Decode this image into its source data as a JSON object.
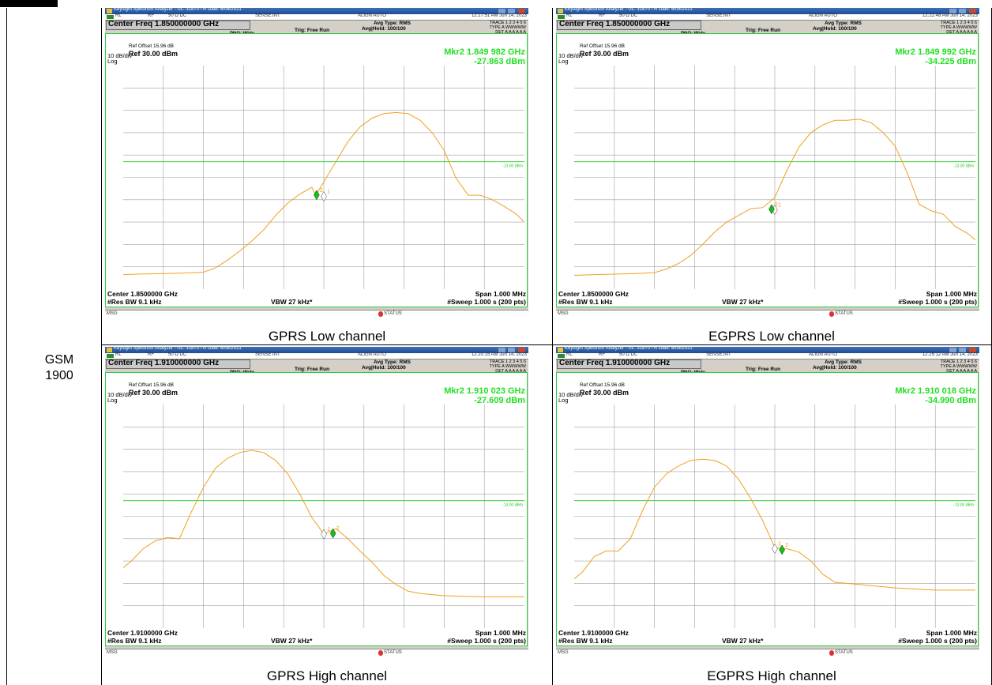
{
  "row_label": {
    "line1": "GSM",
    "line2": "1900"
  },
  "colors": {
    "trace": "#f0a020",
    "grid": "#a0a0a0",
    "display_line": "#22cc22",
    "marker_text": "#22dd22",
    "marker2": "#13c013",
    "marker1": "#ffffff"
  },
  "panels": [
    {
      "caption": "GPRS Low channel",
      "window_title": "Keysight Spectrum Analyzer - UL: 31870 \\ R Date: 6/08/2021",
      "status": {
        "rl": "RL",
        "rf": "RF",
        "ohm": "50 Ω  DC",
        "sense": "SENSE:INT",
        "align": "ALIGN AUTO",
        "time": "12:17:51 AM Jun 14, 2023"
      },
      "center_freq_title": "Center Freq 1.850000000 GHz",
      "pno": "PNO: Wide",
      "ifgain": "IFGain:Low",
      "trig": "Trig: Free Run",
      "atten": "#Atten: 40 dB",
      "avg_type": "Avg Type: RMS",
      "avg_hold": "Avg|Hold: 100/100",
      "trace_line": "TRACE 1 2 3 4 5 6",
      "type_line": "TYPE A WWWWW",
      "det_line": "DET A A A A A A",
      "marker_freq": "Mkr2 1.849 982 GHz",
      "marker_level": "-27.863 dBm",
      "ref_offset": "Ref Offset 15.96 dB",
      "ref_level": "Ref 30.00 dBm",
      "scale": "10 dB/div",
      "log": "Log",
      "center": "Center 1.8500000 GHz",
      "span": "Span 1.000 MHz",
      "res_bw": "#Res BW 9.1 kHz",
      "vbw": "VBW 27 kHz*",
      "sweep": "#Sweep  1.000 s (200 pts)",
      "msg": "MSG",
      "status_label": "STATUS",
      "display_line_label": "-13.00 dBm",
      "chart_data": {
        "type": "line",
        "title": "",
        "xlabel": "",
        "ylabel": "",
        "xlim": [
          1.8495,
          1.8505
        ],
        "ylim": [
          -70,
          30
        ],
        "x_unit": "GHz",
        "y_unit": "dBm",
        "y_ticks": [
          "20.0",
          "10.0",
          "0.00",
          "-10.0",
          "-20.0",
          "-30.0",
          "-40.0",
          "-50.0",
          "-60.0"
        ],
        "display_line": -13.0,
        "series": [
          {
            "x": [
              1.8495,
              1.84955,
              1.8496,
              1.84965,
              1.8497,
              1.84973,
              1.84976,
              1.84979,
              1.84982,
              1.84985,
              1.84988,
              1.84991,
              1.84994,
              1.84997,
              1.84998,
              1.85,
              1.85003,
              1.85006,
              1.85009,
              1.85012,
              1.85015,
              1.85018,
              1.85021,
              1.85024,
              1.85027,
              1.8503,
              1.85033,
              1.85036,
              1.85039,
              1.85042,
              1.85045,
              1.85048,
              1.8505
            ],
            "values": [
              -63.5,
              -63.2,
              -63,
              -62.8,
              -62.4,
              -60.5,
              -57,
              -53,
              -48.5,
              -43.5,
              -37,
              -31.5,
              -27.5,
              -24.5,
              -28,
              -22,
              -13,
              -4,
              2.5,
              6.5,
              8.5,
              9,
              8.5,
              5.5,
              0,
              -8,
              -20.5,
              -28,
              -28,
              -30,
              -33,
              -36.5,
              -40
            ]
          }
        ],
        "markers": [
          {
            "id": "1",
            "x": 1.85,
            "y": -28.5
          },
          {
            "id": "2",
            "x": 1.849982,
            "y": -27.863
          }
        ]
      }
    },
    {
      "caption": "EGPRS Low channel",
      "window_title": "Keysight Spectrum Analyzer - UL: 31870 \\ R Date: 6/08/2021",
      "status": {
        "rl": "RL",
        "rf": "RF",
        "ohm": "50 Ω  DC",
        "sense": "SENSE:INT",
        "align": "ALIGN AUTO",
        "time": "12:22:48 AM Jun 14, 2023"
      },
      "center_freq_title": "Center Freq 1.850000000 GHz",
      "pno": "PNO: Wide",
      "ifgain": "IFGain:Low",
      "trig": "Trig: Free Run",
      "atten": "#Atten: 40 dB",
      "avg_type": "Avg Type: RMS",
      "avg_hold": "Avg|Hold: 100/100",
      "trace_line": "TRACE 1 2 3 4 5 6",
      "type_line": "TYPE A WWWWW",
      "det_line": "DET A A A A A A",
      "marker_freq": "Mkr2 1.849 992 GHz",
      "marker_level": "-34.225 dBm",
      "ref_offset": "Ref Offset 15.96 dB",
      "ref_level": "Ref 30.00 dBm",
      "scale": "10 dB/div",
      "log": "Log",
      "center": "Center 1.8500000 GHz",
      "span": "Span 1.000 MHz",
      "res_bw": "#Res BW 9.1 kHz",
      "vbw": "VBW 27 kHz*",
      "sweep": "#Sweep  1.000 s (200 pts)",
      "msg": "MSG",
      "status_label": "STATUS",
      "display_line_label": "-13.00 dBm",
      "chart_data": {
        "type": "line",
        "title": "",
        "xlabel": "",
        "ylabel": "",
        "xlim": [
          1.8495,
          1.8505
        ],
        "ylim": [
          -70,
          30
        ],
        "x_unit": "GHz",
        "y_unit": "dBm",
        "y_ticks": [
          "20.0",
          "10.0",
          "0.00",
          "-10.0",
          "-20.0",
          "-30.0",
          "-40.0",
          "-50.0",
          "-60.0"
        ],
        "display_line": -13.0,
        "series": [
          {
            "x": [
              1.8495,
              1.84955,
              1.8496,
              1.84965,
              1.8497,
              1.84973,
              1.84976,
              1.84979,
              1.84982,
              1.84985,
              1.84988,
              1.84991,
              1.84994,
              1.84997,
              1.85,
              1.85003,
              1.85006,
              1.85009,
              1.85012,
              1.85015,
              1.85018,
              1.85021,
              1.85024,
              1.85027,
              1.8503,
              1.85033,
              1.85036,
              1.85039,
              1.85042,
              1.85045,
              1.85048,
              1.8505
            ],
            "values": [
              -63.8,
              -63.5,
              -63.3,
              -63,
              -62.6,
              -61,
              -58.5,
              -55,
              -50,
              -44.5,
              -40,
              -37,
              -34,
              -33.5,
              -29,
              -17,
              -6.5,
              0,
              3.5,
              5.5,
              5.5,
              6,
              4.5,
              0,
              -6,
              -18,
              -32,
              -35,
              -36.5,
              -42,
              -45,
              -48
            ]
          }
        ],
        "markers": [
          {
            "id": "1",
            "x": 1.85,
            "y": -34.5
          },
          {
            "id": "2",
            "x": 1.849992,
            "y": -34.225
          }
        ]
      }
    },
    {
      "caption": "GPRS High channel",
      "window_title": "Keysight Spectrum Analyzer - UL: 31870 \\ R Date: 6/08/2021",
      "status": {
        "rl": "RL",
        "rf": "RF",
        "ohm": "50 Ω  DC",
        "sense": "SENSE:INT",
        "align": "ALIGN AUTO",
        "time": "12:20:15 AM Jun 14, 2023"
      },
      "center_freq_title": "Center Freq 1.910000000 GHz",
      "pno": "PNO: Wide",
      "ifgain": "IFGain:Low",
      "trig": "Trig: Free Run",
      "atten": "#Atten: 40 dB",
      "avg_type": "Avg Type: RMS",
      "avg_hold": "Avg|Hold: 100/100",
      "trace_line": "TRACE 1 2 3 4 5 6",
      "type_line": "TYPE A WWWWW",
      "det_line": "DET A A A A A A",
      "marker_freq": "Mkr2 1.910 023 GHz",
      "marker_level": "-27.609 dBm",
      "ref_offset": "Ref Offset 15.96 dB",
      "ref_level": "Ref 30.00 dBm",
      "scale": "10 dB/div",
      "log": "Log",
      "center": "Center 1.9100000 GHz",
      "span": "Span 1.000 MHz",
      "res_bw": "#Res BW 9.1 kHz",
      "vbw": "VBW 27 kHz*",
      "sweep": "#Sweep  1.000 s (200 pts)",
      "msg": "MSG",
      "status_label": "STATUS",
      "display_line_label": "-13.00 dBm",
      "chart_data": {
        "type": "line",
        "title": "",
        "xlabel": "",
        "ylabel": "",
        "xlim": [
          1.9095,
          1.9105
        ],
        "ylim": [
          -70,
          30
        ],
        "x_unit": "GHz",
        "y_unit": "dBm",
        "y_ticks": [
          "20.0",
          "10.0",
          "0.00",
          "-10.0",
          "-20.0",
          "-30.0",
          "-40.0",
          "-50.0",
          "-60.0"
        ],
        "display_line": -13.0,
        "series": [
          {
            "x": [
              1.9095,
              1.90952,
              1.90955,
              1.90958,
              1.90961,
              1.90964,
              1.90967,
              1.9097,
              1.90973,
              1.90976,
              1.90979,
              1.90982,
              1.90985,
              1.90988,
              1.90991,
              1.90994,
              1.90997,
              1.91,
              1.91003,
              1.91006,
              1.91009,
              1.91012,
              1.91015,
              1.91018,
              1.91021,
              1.91024,
              1.91027,
              1.9103,
              1.91035,
              1.9104,
              1.91045,
              1.9105
            ],
            "values": [
              -43,
              -40,
              -34.5,
              -31,
              -29.5,
              -30,
              -18,
              -7,
              1.5,
              6,
              8.5,
              9.5,
              8.5,
              5,
              -1,
              -10,
              -20.5,
              -28,
              -25.5,
              -30,
              -35.5,
              -40.5,
              -46.5,
              -50.5,
              -53.5,
              -54.5,
              -55,
              -55.5,
              -55.8,
              -56,
              -56,
              -56
            ]
          }
        ],
        "markers": [
          {
            "id": "1",
            "x": 1.91,
            "y": -28
          },
          {
            "id": "2",
            "x": 1.910023,
            "y": -27.609
          }
        ]
      }
    },
    {
      "caption": "EGPRS High channel",
      "window_title": "Keysight Spectrum Analyzer - UL: 31870 \\ R Date: 6/08/2021",
      "status": {
        "rl": "RL",
        "rf": "RF",
        "ohm": "50 Ω  DC",
        "sense": "SENSE:INT",
        "align": "ALIGN AUTO",
        "time": "12:25:12 AM Jun 14, 2023"
      },
      "center_freq_title": "Center Freq 1.910000000 GHz",
      "pno": "PNO: Wide",
      "ifgain": "IFGain:Low",
      "trig": "Trig: Free Run",
      "atten": "#Atten: 40 dB",
      "avg_type": "Avg Type: RMS",
      "avg_hold": "Avg|Hold: 100/100",
      "trace_line": "TRACE 1 2 3 4 5 6",
      "type_line": "TYPE A WWWWW",
      "det_line": "DET A A A A A A",
      "marker_freq": "Mkr2 1.910 018 GHz",
      "marker_level": "-34.990 dBm",
      "ref_offset": "Ref Offset 15.96 dB",
      "ref_level": "Ref 30.00 dBm",
      "scale": "10 dB/div",
      "log": "Log",
      "center": "Center 1.9100000 GHz",
      "span": "Span 1.000 MHz",
      "res_bw": "#Res BW 9.1 kHz",
      "vbw": "VBW 27 kHz*",
      "sweep": "#Sweep  1.000 s (200 pts)",
      "msg": "MSG",
      "status_label": "STATUS",
      "display_line_label": "-13.00 dBm",
      "chart_data": {
        "type": "line",
        "title": "",
        "xlabel": "",
        "ylabel": "",
        "xlim": [
          1.9095,
          1.9105
        ],
        "ylim": [
          -70,
          30
        ],
        "x_unit": "GHz",
        "y_unit": "dBm",
        "y_ticks": [
          "20.0",
          "10.0",
          "0.00",
          "-10.0",
          "-20.0",
          "-30.0",
          "-40.0",
          "-50.0",
          "-60.0"
        ],
        "display_line": -13.0,
        "series": [
          {
            "x": [
              1.9095,
              1.90952,
              1.90955,
              1.90958,
              1.90961,
              1.90964,
              1.90967,
              1.9097,
              1.90973,
              1.90976,
              1.90979,
              1.90982,
              1.90985,
              1.90988,
              1.90991,
              1.90994,
              1.90997,
              1.91,
              1.91003,
              1.91006,
              1.91009,
              1.91012,
              1.91015,
              1.91018,
              1.91021,
              1.91024,
              1.91027,
              1.9103,
              1.91035,
              1.9104,
              1.91045,
              1.9105
            ],
            "values": [
              -48,
              -45,
              -38,
              -35.5,
              -35.5,
              -30,
              -17.5,
              -7,
              -1,
              2.5,
              5,
              5.5,
              5,
              2.5,
              -3.5,
              -12,
              -22,
              -34,
              -34.5,
              -36,
              -40,
              -46,
              -49.5,
              -50,
              -50.5,
              -51,
              -51.5,
              -52,
              -52.5,
              -53,
              -53,
              -53
            ]
          }
        ],
        "markers": [
          {
            "id": "1",
            "x": 1.91,
            "y": -34.5
          },
          {
            "id": "2",
            "x": 1.910018,
            "y": -34.99
          }
        ]
      }
    }
  ]
}
